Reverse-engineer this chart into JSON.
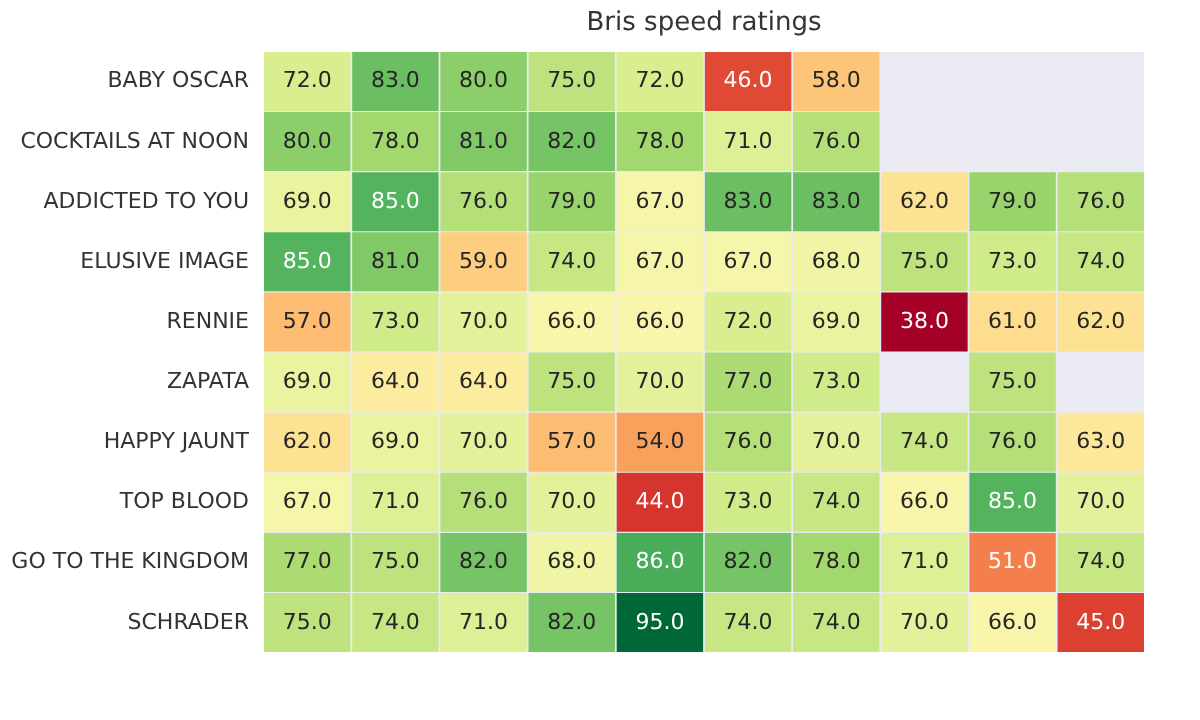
{
  "chart_data": {
    "type": "heatmap",
    "title": "Bris speed ratings",
    "categories": [
      null,
      null,
      null,
      null,
      null,
      null,
      null,
      null,
      null,
      null
    ],
    "y_categories": [
      "BABY OSCAR",
      "COCKTAILS AT NOON",
      "ADDICTED TO YOU",
      "ELUSIVE IMAGE",
      "RENNIE",
      "ZAPATA",
      "HAPPY JAUNT",
      "TOP BLOOD",
      "GO TO THE KINGDOM",
      "SCHRADER"
    ],
    "cells": [
      [
        72,
        83,
        80,
        75,
        72,
        46,
        58,
        null,
        null,
        null
      ],
      [
        80,
        78,
        81,
        82,
        78,
        71,
        76,
        null,
        null,
        null
      ],
      [
        69,
        85,
        76,
        79,
        67,
        83,
        83,
        62,
        79,
        76
      ],
      [
        85,
        81,
        59,
        74,
        67,
        67,
        68,
        75,
        73,
        74
      ],
      [
        57,
        73,
        70,
        66,
        66,
        72,
        69,
        38,
        61,
        62
      ],
      [
        69,
        64,
        64,
        75,
        70,
        77,
        73,
        null,
        75,
        null
      ],
      [
        62,
        69,
        70,
        57,
        54,
        76,
        70,
        74,
        76,
        63
      ],
      [
        67,
        71,
        76,
        70,
        44,
        73,
        74,
        66,
        85,
        70
      ],
      [
        77,
        75,
        82,
        68,
        86,
        82,
        78,
        71,
        51,
        74
      ],
      [
        75,
        74,
        71,
        82,
        95,
        74,
        74,
        70,
        66,
        45
      ]
    ],
    "cell_labels": [
      [
        "72.0",
        "83.0",
        "80.0",
        "75.0",
        "72.0",
        "46.0",
        "58.0",
        null,
        null,
        null
      ],
      [
        "80.0",
        "78.0",
        "81.0",
        "82.0",
        "78.0",
        "71.0",
        "76.0",
        null,
        null,
        null
      ],
      [
        "69.0",
        "85.0",
        "76.0",
        "79.0",
        "67.0",
        "83.0",
        "83.0",
        "62.0",
        "79.0",
        "76.0"
      ],
      [
        "85.0",
        "81.0",
        "59.0",
        "74.0",
        "67.0",
        "67.0",
        "68.0",
        "75.0",
        "73.0",
        "74.0"
      ],
      [
        "57.0",
        "73.0",
        "70.0",
        "66.0",
        "66.0",
        "72.0",
        "69.0",
        "38.0",
        "61.0",
        "62.0"
      ],
      [
        "69.0",
        "64.0",
        "64.0",
        "75.0",
        "70.0",
        "77.0",
        "73.0",
        null,
        "75.0",
        null
      ],
      [
        "62.0",
        "69.0",
        "70.0",
        "57.0",
        "54.0",
        "76.0",
        "70.0",
        "74.0",
        "76.0",
        "63.0"
      ],
      [
        "67.0",
        "71.0",
        "76.0",
        "70.0",
        "44.0",
        "73.0",
        "74.0",
        "66.0",
        "85.0",
        "70.0"
      ],
      [
        "77.0",
        "75.0",
        "82.0",
        "68.0",
        "86.0",
        "82.0",
        "78.0",
        "71.0",
        "51.0",
        "74.0"
      ],
      [
        "75.0",
        "74.0",
        "71.0",
        "82.0",
        "95.0",
        "74.0",
        "74.0",
        "70.0",
        "66.0",
        "45.0"
      ]
    ]
  }
}
